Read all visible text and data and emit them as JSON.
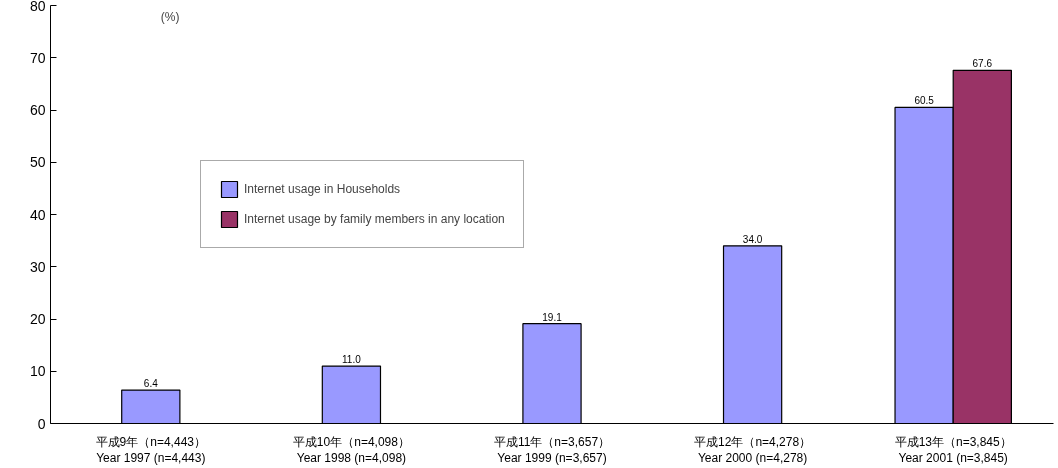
{
  "chart_data": {
    "type": "bar",
    "ylabel": "(%)",
    "categories": [
      "平成9年（n=4,443）\nYear 1997 (n=4,443)",
      "平成10年（n=4,098）\nYear 1998 (n=4,098)",
      "平成11年（n=3,657）\nYear 1999 (n=3,657)",
      "平成12年（n=4,278）\nYear 2000 (n=4,278)",
      "平成13年（n=3,845）\nYear 2001 (n=3,845)"
    ],
    "series": [
      {
        "name": "Internet usage in Households",
        "color": "#9999ff",
        "values": [
          6.4,
          11.0,
          19.1,
          34.0,
          60.5
        ],
        "value_labels": [
          "6.4",
          "11.0",
          "19.1",
          "34.0",
          "60.5"
        ]
      },
      {
        "name": "Internet usage by family members in any location",
        "color": "#993366",
        "values": [
          null,
          null,
          null,
          null,
          67.6
        ],
        "value_labels": [
          null,
          null,
          null,
          null,
          "67.6"
        ]
      }
    ],
    "ylim": [
      0,
      80
    ],
    "yticks": [
      0,
      10,
      20,
      30,
      40,
      50,
      60,
      70,
      80
    ],
    "grid": false,
    "legend": "top left"
  }
}
